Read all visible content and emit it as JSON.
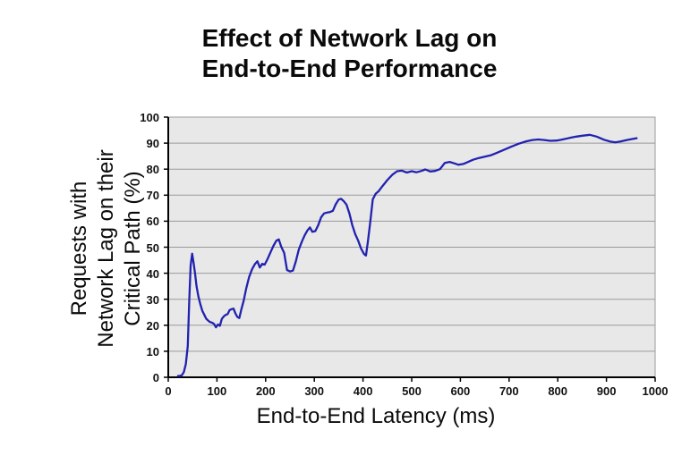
{
  "chart_data": {
    "type": "line",
    "title": "Effect of Network Lag on\nEnd-to-End Performance",
    "xlabel": "End-to-End Latency (ms)",
    "ylabel": "Requests with\nNetwork Lag on their\nCritical Path (%)",
    "xlim": [
      0,
      1000
    ],
    "ylim": [
      0,
      100
    ],
    "x_ticks": [
      0,
      100,
      200,
      300,
      400,
      500,
      600,
      700,
      800,
      900,
      1000
    ],
    "y_ticks": [
      0,
      10,
      20,
      30,
      40,
      50,
      60,
      70,
      80,
      90,
      100
    ],
    "grid": "horizontal-only",
    "legend": "none",
    "plot_background": "#e8e8e8",
    "grid_color": "#9a9a9a",
    "axis_color": "#000000",
    "series": [
      {
        "name": "requests-with-network-lag-on-critical-path",
        "color": "#2222b0",
        "points": [
          [
            20,
            0.5
          ],
          [
            24,
            0.5
          ],
          [
            28,
            0.8
          ],
          [
            32,
            2
          ],
          [
            36,
            5
          ],
          [
            40,
            12
          ],
          [
            43,
            29
          ],
          [
            46,
            43
          ],
          [
            49,
            47.5
          ],
          [
            52,
            44
          ],
          [
            55,
            40
          ],
          [
            58,
            35
          ],
          [
            62,
            31
          ],
          [
            66,
            28
          ],
          [
            70,
            25.5
          ],
          [
            74,
            24
          ],
          [
            78,
            22.5
          ],
          [
            82,
            21.8
          ],
          [
            86,
            21.2
          ],
          [
            90,
            21
          ],
          [
            94,
            20.5
          ],
          [
            98,
            19.2
          ],
          [
            102,
            20.3
          ],
          [
            106,
            19.8
          ],
          [
            110,
            22.4
          ],
          [
            114,
            23.4
          ],
          [
            118,
            24
          ],
          [
            122,
            24.3
          ],
          [
            126,
            25.8
          ],
          [
            130,
            26.2
          ],
          [
            134,
            26.4
          ],
          [
            138,
            24.5
          ],
          [
            142,
            23.2
          ],
          [
            146,
            22.8
          ],
          [
            150,
            26
          ],
          [
            155,
            29.5
          ],
          [
            160,
            34
          ],
          [
            166,
            38.5
          ],
          [
            172,
            41.5
          ],
          [
            178,
            43.5
          ],
          [
            183,
            44.6
          ],
          [
            188,
            42.2
          ],
          [
            193,
            43.6
          ],
          [
            198,
            43.3
          ],
          [
            204,
            45.5
          ],
          [
            210,
            48
          ],
          [
            216,
            50.5
          ],
          [
            222,
            52.5
          ],
          [
            227,
            53
          ],
          [
            232,
            50.2
          ],
          [
            238,
            47.8
          ],
          [
            244,
            41.2
          ],
          [
            250,
            40.7
          ],
          [
            256,
            41
          ],
          [
            262,
            44.5
          ],
          [
            268,
            49
          ],
          [
            274,
            52
          ],
          [
            280,
            54.5
          ],
          [
            286,
            56.5
          ],
          [
            291,
            57.6
          ],
          [
            296,
            55.9
          ],
          [
            302,
            56.2
          ],
          [
            308,
            58.5
          ],
          [
            314,
            61.5
          ],
          [
            320,
            63
          ],
          [
            326,
            63.3
          ],
          [
            332,
            63.5
          ],
          [
            338,
            64
          ],
          [
            344,
            66.5
          ],
          [
            350,
            68.3
          ],
          [
            355,
            68.6
          ],
          [
            360,
            67.8
          ],
          [
            366,
            66.4
          ],
          [
            372,
            63
          ],
          [
            378,
            58.5
          ],
          [
            384,
            55
          ],
          [
            390,
            52.5
          ],
          [
            396,
            49.5
          ],
          [
            402,
            47.4
          ],
          [
            406,
            46.8
          ],
          [
            410,
            52
          ],
          [
            415,
            60
          ],
          [
            420,
            68.4
          ],
          [
            426,
            70.5
          ],
          [
            432,
            71.5
          ],
          [
            440,
            73.5
          ],
          [
            450,
            75.8
          ],
          [
            460,
            77.8
          ],
          [
            470,
            79.2
          ],
          [
            480,
            79.4
          ],
          [
            490,
            78.7
          ],
          [
            500,
            79.2
          ],
          [
            510,
            78.8
          ],
          [
            520,
            79.3
          ],
          [
            528,
            79.9
          ],
          [
            538,
            79.1
          ],
          [
            548,
            79.3
          ],
          [
            558,
            80
          ],
          [
            568,
            82.4
          ],
          [
            578,
            82.8
          ],
          [
            588,
            82.2
          ],
          [
            596,
            81.7
          ],
          [
            606,
            82
          ],
          [
            616,
            82.8
          ],
          [
            626,
            83.6
          ],
          [
            638,
            84.3
          ],
          [
            650,
            84.8
          ],
          [
            662,
            85.3
          ],
          [
            675,
            86.3
          ],
          [
            690,
            87.5
          ],
          [
            705,
            88.7
          ],
          [
            720,
            89.8
          ],
          [
            735,
            90.7
          ],
          [
            748,
            91.2
          ],
          [
            760,
            91.4
          ],
          [
            772,
            91.2
          ],
          [
            785,
            90.9
          ],
          [
            798,
            91
          ],
          [
            810,
            91.4
          ],
          [
            824,
            92
          ],
          [
            838,
            92.5
          ],
          [
            852,
            92.9
          ],
          [
            866,
            93.2
          ],
          [
            880,
            92.5
          ],
          [
            895,
            91.3
          ],
          [
            908,
            90.6
          ],
          [
            918,
            90.3
          ],
          [
            930,
            90.7
          ],
          [
            942,
            91.2
          ],
          [
            954,
            91.6
          ],
          [
            962,
            91.9
          ]
        ]
      }
    ]
  }
}
